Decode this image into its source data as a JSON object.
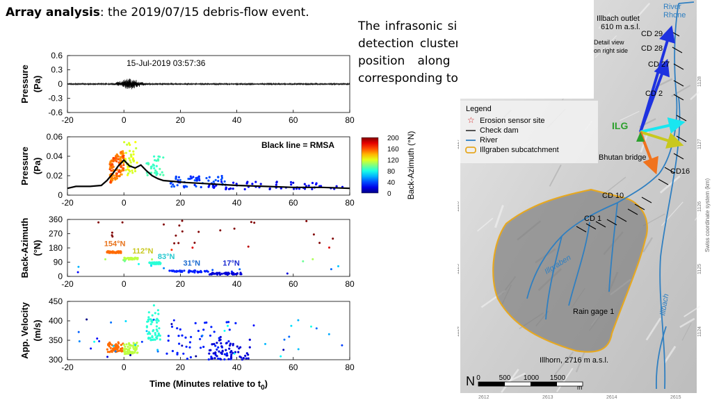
{
  "title": {
    "bold": "Array analysis",
    "rest": ": the 2019/07/15 debris-flow event."
  },
  "description": "The infrasonic signal is dominated by detection clusters generated in fixed position along the channel likely corresponding to Check Dams.",
  "chart_data": [
    {
      "type": "line",
      "ylabel": "Pressure (Pa)",
      "xlim": [
        -20,
        80
      ],
      "ylim": [
        -0.6,
        0.6
      ],
      "yticks": [
        "0.6",
        "0.3",
        "0",
        "-0.3",
        "-0.6"
      ],
      "xticks": [
        "-20",
        "0",
        "20",
        "40",
        "60",
        "80"
      ],
      "annotation": "15-Jul-2019 03:57:36"
    },
    {
      "type": "scatter",
      "ylabel": "Pressure (Pa)",
      "xlim": [
        -20,
        80
      ],
      "ylim": [
        0,
        0.06
      ],
      "yticks": [
        "0.06",
        "0.04",
        "0.02",
        "0"
      ],
      "xticks": [
        "-20",
        "0",
        "20",
        "40",
        "60",
        "80"
      ],
      "annotation": "Black line = RMSA",
      "colorbar": {
        "label": "Back-Azimuth (°N)",
        "ticks": [
          "200",
          "160",
          "120",
          "80",
          "40",
          "0"
        ],
        "range": [
          0,
          200
        ]
      },
      "rmsa": [
        [
          -20,
          0.007
        ],
        [
          -17,
          0.009
        ],
        [
          -12,
          0.009
        ],
        [
          -8,
          0.01
        ],
        [
          -6,
          0.015
        ],
        [
          -4,
          0.022
        ],
        [
          -2,
          0.03
        ],
        [
          0,
          0.036
        ],
        [
          2,
          0.03
        ],
        [
          4,
          0.028
        ],
        [
          6,
          0.031
        ],
        [
          8,
          0.025
        ],
        [
          10,
          0.02
        ],
        [
          12,
          0.017
        ],
        [
          14,
          0.015
        ],
        [
          18,
          0.014
        ],
        [
          22,
          0.013
        ],
        [
          28,
          0.012
        ],
        [
          34,
          0.011
        ],
        [
          40,
          0.01
        ],
        [
          50,
          0.009
        ],
        [
          60,
          0.008
        ],
        [
          70,
          0.008
        ],
        [
          80,
          0.007
        ]
      ]
    },
    {
      "type": "scatter",
      "ylabel": "Back-Azimuth (°N)",
      "xlim": [
        -20,
        80
      ],
      "ylim": [
        0,
        360
      ],
      "yticks": [
        "360",
        "270",
        "180",
        "90",
        "0"
      ],
      "xticks": [
        "-20",
        "0",
        "20",
        "40",
        "60",
        "80"
      ],
      "labels": [
        {
          "text": "154°N",
          "x": -7,
          "y": 190,
          "color": "#e8731c"
        },
        {
          "text": "112°N",
          "x": 3,
          "y": 145,
          "color": "#c8c81e"
        },
        {
          "text": "83°N",
          "x": 12,
          "y": 110,
          "color": "#24c8d0"
        },
        {
          "text": "31°N",
          "x": 21,
          "y": 68,
          "color": "#1a6ad0"
        },
        {
          "text": "17°N",
          "x": 35,
          "y": 68,
          "color": "#1a2ad0"
        }
      ]
    },
    {
      "type": "scatter",
      "ylabel": "App. Velocity (m/s)",
      "xlim": [
        -20,
        80
      ],
      "ylim": [
        300,
        450
      ],
      "yticks": [
        "450",
        "400",
        "350",
        "300"
      ],
      "xticks": [
        "-20",
        "0",
        "20",
        "40",
        "60",
        "80"
      ],
      "xlabel": "Time (Minutes relative to t",
      "xlabel_sub": "0",
      "xlabel_end": ")"
    }
  ],
  "map": {
    "legend_title": "Legend",
    "legend_items": [
      "Erosion sensor site",
      "Check dam",
      "River",
      "Illgraben subcatchment"
    ],
    "labels": {
      "river": "River\nRhone",
      "outlet": "Illbach outlet\n610 m a.s.l.",
      "detail": "Detail view\non right side",
      "cd29": "CD 29",
      "cd28": "CD 28",
      "cd27": "CD 27",
      "cd2": "CD 2",
      "ilg": "ILG",
      "bhutan": "Bhutan bridge",
      "cd16": "CD16",
      "cd10": "CD 10",
      "cd1": "CD 1",
      "illgraben": "Illgraben",
      "illbach": "Illbach",
      "raingage": "Rain gage 1",
      "illhorn": "Illhorn, 2716 m a.s.l.",
      "north": "N",
      "swiss": "Swiss coordinate system (km)",
      "scale_unit": "m"
    },
    "scale": [
      "0",
      "500",
      "1000",
      "1500"
    ],
    "left_ticks": [
      "1127",
      "1126",
      "1125",
      "1124"
    ],
    "right_ticks": [
      "1128",
      "1127",
      "1126",
      "1125",
      "1124"
    ],
    "bottom_ticks": [
      "2612",
      "2613",
      "2614",
      "2615"
    ]
  },
  "colors": {
    "orange": "#e8731c",
    "yellow": "#c8d21e",
    "cyan": "#24c8d0",
    "blue": "#1a5ad0",
    "darkblue": "#1a2ab8",
    "river": "#2f7fc1",
    "catchment": "#e6a821",
    "arrow_blue": "#1e32e0",
    "arrow_cyan": "#19e6f0",
    "arrow_yellow": "#c8c81e",
    "arrow_orange": "#f0731e",
    "ilg": "#2ca02c"
  }
}
